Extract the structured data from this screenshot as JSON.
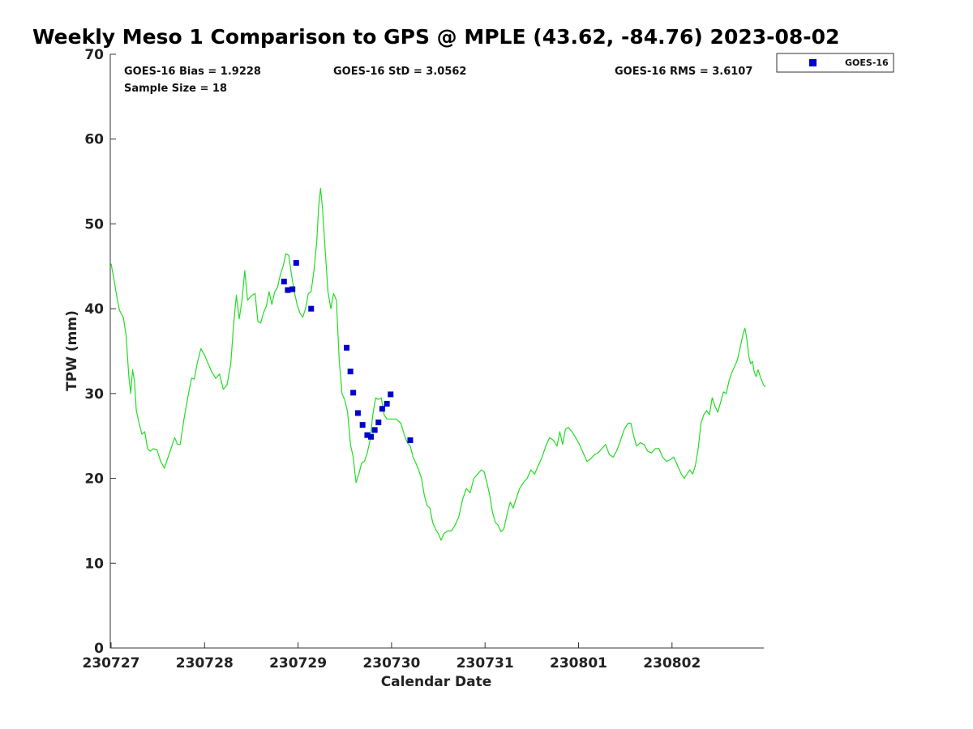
{
  "chart_data": {
    "type": "line",
    "title": "Weekly Meso 1 Comparison to GPS @ MPLE (43.62, -84.76) 2023-08-02",
    "xlabel": "Calendar Date",
    "ylabel": "TPW (mm)",
    "ylim": [
      0,
      70
    ],
    "yticks": [
      0,
      10,
      20,
      30,
      40,
      50,
      60,
      70
    ],
    "xlim": [
      0,
      7
    ],
    "xticks": [
      {
        "value": 0,
        "label": "230727"
      },
      {
        "value": 1,
        "label": "230728"
      },
      {
        "value": 2,
        "label": "230729"
      },
      {
        "value": 3,
        "label": "230730"
      },
      {
        "value": 4,
        "label": "230731"
      },
      {
        "value": 5,
        "label": "230801"
      },
      {
        "value": 6,
        "label": "230802"
      }
    ],
    "stats": {
      "bias": "GOES-16 Bias = 1.9228",
      "std": "GOES-16 StD = 3.0562",
      "rms": "GOES-16 RMS = 3.6107",
      "sample": "Sample Size = 18"
    },
    "legend": {
      "position": "top-right",
      "entries": [
        "GOES-16"
      ]
    },
    "colors": {
      "gps_line": "#22dd22",
      "goes_points": "#0000cc"
    },
    "series": [
      {
        "kind": "line",
        "points": [
          [
            0.0,
            45.3
          ],
          [
            0.03,
            43.5
          ],
          [
            0.06,
            41.5
          ],
          [
            0.09,
            39.8
          ],
          [
            0.13,
            39.0
          ],
          [
            0.16,
            37.0
          ],
          [
            0.19,
            32.0
          ],
          [
            0.21,
            30.0
          ],
          [
            0.23,
            32.8
          ],
          [
            0.25,
            31.5
          ],
          [
            0.27,
            28.0
          ],
          [
            0.3,
            26.5
          ],
          [
            0.33,
            25.2
          ],
          [
            0.36,
            25.5
          ],
          [
            0.39,
            23.5
          ],
          [
            0.42,
            23.2
          ],
          [
            0.45,
            23.5
          ],
          [
            0.49,
            23.4
          ],
          [
            0.53,
            22.0
          ],
          [
            0.57,
            21.2
          ],
          [
            0.61,
            22.5
          ],
          [
            0.65,
            23.8
          ],
          [
            0.68,
            24.8
          ],
          [
            0.71,
            24.0
          ],
          [
            0.74,
            24.0
          ],
          [
            0.78,
            27.0
          ],
          [
            0.82,
            29.5
          ],
          [
            0.86,
            31.8
          ],
          [
            0.89,
            31.7
          ],
          [
            0.92,
            33.5
          ],
          [
            0.96,
            35.3
          ],
          [
            1.0,
            34.5
          ],
          [
            1.04,
            33.5
          ],
          [
            1.08,
            32.5
          ],
          [
            1.12,
            31.8
          ],
          [
            1.16,
            32.3
          ],
          [
            1.2,
            30.5
          ],
          [
            1.24,
            31.0
          ],
          [
            1.28,
            33.5
          ],
          [
            1.31,
            38.0
          ],
          [
            1.34,
            41.6
          ],
          [
            1.37,
            38.8
          ],
          [
            1.4,
            41.0
          ],
          [
            1.43,
            44.5
          ],
          [
            1.46,
            41.0
          ],
          [
            1.5,
            41.5
          ],
          [
            1.54,
            41.8
          ],
          [
            1.57,
            38.5
          ],
          [
            1.6,
            38.3
          ],
          [
            1.63,
            39.5
          ],
          [
            1.66,
            40.3
          ],
          [
            1.69,
            42.0
          ],
          [
            1.72,
            40.5
          ],
          [
            1.75,
            42.0
          ],
          [
            1.78,
            42.5
          ],
          [
            1.81,
            44.0
          ],
          [
            1.84,
            45.0
          ],
          [
            1.87,
            46.5
          ],
          [
            1.9,
            46.3
          ],
          [
            1.93,
            44.0
          ],
          [
            1.96,
            42.0
          ],
          [
            1.99,
            40.5
          ],
          [
            2.02,
            39.5
          ],
          [
            2.05,
            39.0
          ],
          [
            2.08,
            40.0
          ],
          [
            2.11,
            41.8
          ],
          [
            2.14,
            42.0
          ],
          [
            2.17,
            44.5
          ],
          [
            2.2,
            48.0
          ],
          [
            2.22,
            52.0
          ],
          [
            2.24,
            54.2
          ],
          [
            2.26,
            52.0
          ],
          [
            2.29,
            47.0
          ],
          [
            2.32,
            42.0
          ],
          [
            2.35,
            40.0
          ],
          [
            2.38,
            41.8
          ],
          [
            2.41,
            41.0
          ],
          [
            2.44,
            34.0
          ],
          [
            2.47,
            30.0
          ],
          [
            2.5,
            29.2
          ],
          [
            2.53,
            27.8
          ],
          [
            2.56,
            24.0
          ],
          [
            2.59,
            22.5
          ],
          [
            2.62,
            19.5
          ],
          [
            2.65,
            20.5
          ],
          [
            2.68,
            21.8
          ],
          [
            2.71,
            22.0
          ],
          [
            2.74,
            23.0
          ],
          [
            2.77,
            24.5
          ],
          [
            2.8,
            27.5
          ],
          [
            2.83,
            29.5
          ],
          [
            2.86,
            29.3
          ],
          [
            2.89,
            29.5
          ],
          [
            2.92,
            27.5
          ],
          [
            2.95,
            27.0
          ],
          [
            3.0,
            27.0
          ],
          [
            3.05,
            27.0
          ],
          [
            3.1,
            26.5
          ],
          [
            3.14,
            25.0
          ],
          [
            3.17,
            24.2
          ],
          [
            3.2,
            23.8
          ],
          [
            3.23,
            22.5
          ],
          [
            3.26,
            21.8
          ],
          [
            3.29,
            21.0
          ],
          [
            3.32,
            20.0
          ],
          [
            3.35,
            18.0
          ],
          [
            3.38,
            16.8
          ],
          [
            3.41,
            16.5
          ],
          [
            3.44,
            14.8
          ],
          [
            3.47,
            14.0
          ],
          [
            3.5,
            13.5
          ],
          [
            3.53,
            12.7
          ],
          [
            3.56,
            13.5
          ],
          [
            3.6,
            13.8
          ],
          [
            3.64,
            13.8
          ],
          [
            3.68,
            14.5
          ],
          [
            3.72,
            15.5
          ],
          [
            3.76,
            17.5
          ],
          [
            3.8,
            18.8
          ],
          [
            3.84,
            18.3
          ],
          [
            3.88,
            20.0
          ],
          [
            3.92,
            20.5
          ],
          [
            3.96,
            21.0
          ],
          [
            3.99,
            20.8
          ],
          [
            4.02,
            19.5
          ],
          [
            4.05,
            18.0
          ],
          [
            4.08,
            16.0
          ],
          [
            4.11,
            14.8
          ],
          [
            4.14,
            14.5
          ],
          [
            4.17,
            13.7
          ],
          [
            4.2,
            14.0
          ],
          [
            4.24,
            16.0
          ],
          [
            4.27,
            17.2
          ],
          [
            4.3,
            16.5
          ],
          [
            4.33,
            17.5
          ],
          [
            4.37,
            18.8
          ],
          [
            4.41,
            19.5
          ],
          [
            4.45,
            20.0
          ],
          [
            4.49,
            21.0
          ],
          [
            4.53,
            20.5
          ],
          [
            4.57,
            21.5
          ],
          [
            4.61,
            22.5
          ],
          [
            4.65,
            23.8
          ],
          [
            4.69,
            24.8
          ],
          [
            4.73,
            24.5
          ],
          [
            4.77,
            23.8
          ],
          [
            4.8,
            25.5
          ],
          [
            4.83,
            24.0
          ],
          [
            4.86,
            25.8
          ],
          [
            4.89,
            26.0
          ],
          [
            4.93,
            25.5
          ],
          [
            4.97,
            24.8
          ],
          [
            5.01,
            24.0
          ],
          [
            5.05,
            23.0
          ],
          [
            5.09,
            22.0
          ],
          [
            5.13,
            22.3
          ],
          [
            5.17,
            22.8
          ],
          [
            5.21,
            23.0
          ],
          [
            5.25,
            23.5
          ],
          [
            5.29,
            24.0
          ],
          [
            5.33,
            22.8
          ],
          [
            5.37,
            22.5
          ],
          [
            5.41,
            23.3
          ],
          [
            5.45,
            24.5
          ],
          [
            5.49,
            25.8
          ],
          [
            5.53,
            26.5
          ],
          [
            5.56,
            26.5
          ],
          [
            5.59,
            25.0
          ],
          [
            5.62,
            23.8
          ],
          [
            5.66,
            24.2
          ],
          [
            5.7,
            24.0
          ],
          [
            5.74,
            23.2
          ],
          [
            5.78,
            23.0
          ],
          [
            5.82,
            23.5
          ],
          [
            5.86,
            23.5
          ],
          [
            5.9,
            22.5
          ],
          [
            5.94,
            22.0
          ],
          [
            5.98,
            22.2
          ],
          [
            6.02,
            22.5
          ],
          [
            6.06,
            21.5
          ],
          [
            6.1,
            20.5
          ],
          [
            6.13,
            20.0
          ],
          [
            6.16,
            20.5
          ],
          [
            6.19,
            21.0
          ],
          [
            6.22,
            20.5
          ],
          [
            6.25,
            21.5
          ],
          [
            6.28,
            23.5
          ],
          [
            6.31,
            26.5
          ],
          [
            6.34,
            27.5
          ],
          [
            6.37,
            28.0
          ],
          [
            6.4,
            27.5
          ],
          [
            6.43,
            29.5
          ],
          [
            6.46,
            28.5
          ],
          [
            6.49,
            27.8
          ],
          [
            6.52,
            29.0
          ],
          [
            6.55,
            30.2
          ],
          [
            6.58,
            30.0
          ],
          [
            6.61,
            31.5
          ],
          [
            6.64,
            32.5
          ],
          [
            6.67,
            33.2
          ],
          [
            6.7,
            34.0
          ],
          [
            6.73,
            35.5
          ],
          [
            6.76,
            37.0
          ],
          [
            6.78,
            37.7
          ],
          [
            6.8,
            36.5
          ],
          [
            6.82,
            34.5
          ],
          [
            6.84,
            33.5
          ],
          [
            6.86,
            33.8
          ],
          [
            6.88,
            32.5
          ],
          [
            6.9,
            32.0
          ],
          [
            6.92,
            32.8
          ],
          [
            6.95,
            31.8
          ],
          [
            6.98,
            31.0
          ],
          [
            7.0,
            30.8
          ]
        ]
      },
      {
        "name": "GOES-16",
        "kind": "scatter",
        "points": [
          [
            1.85,
            43.2
          ],
          [
            1.89,
            42.2
          ],
          [
            1.94,
            42.3
          ],
          [
            1.98,
            45.4
          ],
          [
            2.14,
            40.0
          ],
          [
            2.52,
            35.4
          ],
          [
            2.56,
            32.6
          ],
          [
            2.59,
            30.1
          ],
          [
            2.64,
            27.7
          ],
          [
            2.69,
            26.3
          ],
          [
            2.74,
            25.1
          ],
          [
            2.78,
            24.9
          ],
          [
            2.82,
            25.7
          ],
          [
            2.86,
            26.6
          ],
          [
            2.9,
            28.2
          ],
          [
            2.95,
            28.8
          ],
          [
            2.99,
            29.9
          ],
          [
            3.2,
            24.5
          ]
        ]
      }
    ]
  }
}
